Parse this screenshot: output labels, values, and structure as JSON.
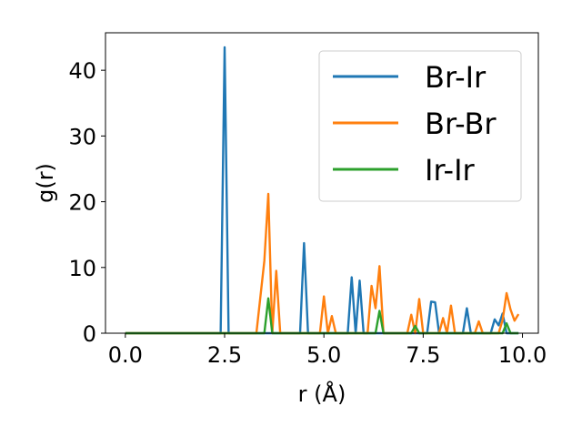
{
  "chart_data": {
    "type": "line",
    "title": "",
    "xlabel": "r (Å)",
    "ylabel": "g(r)",
    "xlim": [
      -0.5,
      10.4
    ],
    "ylim": [
      0,
      45.7
    ],
    "xticks": [
      0.0,
      2.5,
      5.0,
      7.5,
      10.0
    ],
    "xtick_labels": [
      "0.0",
      "2.5",
      "5.0",
      "7.5",
      "10.0"
    ],
    "yticks": [
      0,
      10,
      20,
      30,
      40
    ],
    "ytick_labels": [
      "0",
      "10",
      "20",
      "30",
      "40"
    ],
    "grid": false,
    "legend_position": "top-right",
    "series": [
      {
        "name": "Br-Ir",
        "color": "#1f77b4",
        "points": [
          [
            0,
            0
          ],
          [
            2.4,
            0
          ],
          [
            2.5,
            43.5
          ],
          [
            2.6,
            0
          ],
          [
            4.4,
            0
          ],
          [
            4.5,
            13.7
          ],
          [
            4.6,
            0
          ],
          [
            5.6,
            0
          ],
          [
            5.7,
            8.5
          ],
          [
            5.8,
            0
          ],
          [
            5.9,
            8.0
          ],
          [
            6.0,
            0
          ],
          [
            7.6,
            0
          ],
          [
            7.7,
            4.8
          ],
          [
            7.8,
            4.7
          ],
          [
            7.9,
            0
          ],
          [
            8.5,
            0
          ],
          [
            8.6,
            3.8
          ],
          [
            8.7,
            0
          ],
          [
            9.2,
            0
          ],
          [
            9.3,
            2.1
          ],
          [
            9.4,
            1.2
          ],
          [
            9.5,
            3.0
          ],
          [
            9.6,
            0
          ],
          [
            9.9,
            0
          ]
        ]
      },
      {
        "name": "Br-Br",
        "color": "#ff7f0e",
        "points": [
          [
            0,
            0
          ],
          [
            3.3,
            0
          ],
          [
            3.5,
            11.0
          ],
          [
            3.6,
            21.2
          ],
          [
            3.7,
            0
          ],
          [
            3.8,
            9.5
          ],
          [
            3.9,
            0
          ],
          [
            4.9,
            0
          ],
          [
            5.0,
            5.6
          ],
          [
            5.1,
            0
          ],
          [
            5.2,
            2.6
          ],
          [
            5.3,
            0
          ],
          [
            6.1,
            0
          ],
          [
            6.2,
            7.2
          ],
          [
            6.3,
            3.8
          ],
          [
            6.4,
            10.2
          ],
          [
            6.5,
            0
          ],
          [
            7.1,
            0
          ],
          [
            7.2,
            2.8
          ],
          [
            7.3,
            0
          ],
          [
            7.4,
            5.2
          ],
          [
            7.5,
            0
          ],
          [
            7.9,
            0
          ],
          [
            8.0,
            2.3
          ],
          [
            8.1,
            0
          ],
          [
            8.2,
            4.2
          ],
          [
            8.3,
            0
          ],
          [
            8.8,
            0
          ],
          [
            8.9,
            1.8
          ],
          [
            9.0,
            0
          ],
          [
            9.4,
            0
          ],
          [
            9.5,
            2.0
          ],
          [
            9.6,
            6.1
          ],
          [
            9.7,
            3.6
          ],
          [
            9.8,
            1.9
          ],
          [
            9.9,
            2.9
          ]
        ]
      },
      {
        "name": "Ir-Ir",
        "color": "#2ca02c",
        "points": [
          [
            0,
            0
          ],
          [
            3.5,
            0
          ],
          [
            3.6,
            5.3
          ],
          [
            3.7,
            0
          ],
          [
            6.3,
            0
          ],
          [
            6.4,
            3.4
          ],
          [
            6.5,
            0
          ],
          [
            7.2,
            0
          ],
          [
            7.3,
            1.1
          ],
          [
            7.4,
            0
          ],
          [
            9.5,
            0
          ],
          [
            9.6,
            1.5
          ],
          [
            9.7,
            0
          ],
          [
            9.9,
            0
          ]
        ]
      }
    ]
  }
}
